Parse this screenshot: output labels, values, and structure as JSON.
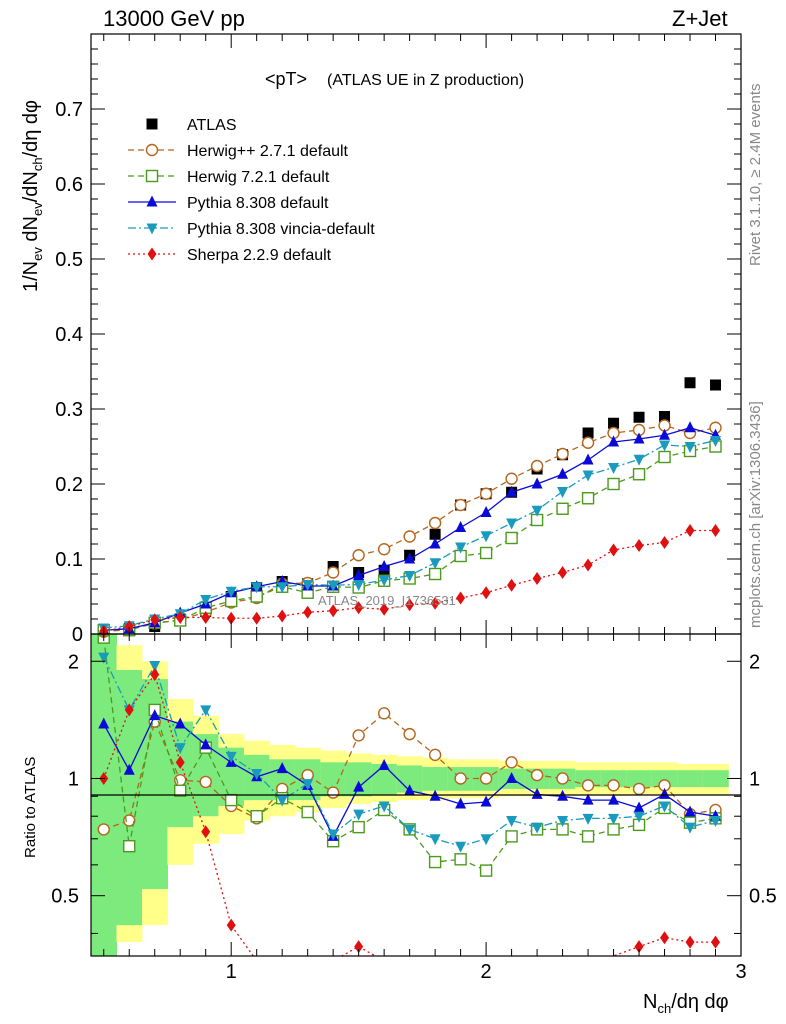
{
  "header": {
    "left": "13000 GeV pp",
    "right": "Z+Jet"
  },
  "side_labels": {
    "rivet": "Rivet 3.1.10, ≥ 2.4M events",
    "mcplots": "mcplots.cern.ch [arXiv:1306.3436]"
  },
  "chart_data": {
    "type": "scatter",
    "title": "<pT>",
    "subtitle": "(ATLAS UE in Z production)",
    "watermark": "ATLAS_2019_I1736531",
    "xlabel_main": "N",
    "xlabel_sub": "ch",
    "xlabel_rest": "/dη dφ",
    "ylabel_main": "1/N",
    "ylabel_ev": "ev",
    "ylabel_mid": " dN",
    "ylabel_ev2": "ev",
    "ylabel_mid2": "/dN",
    "ylabel_ch": "ch",
    "ylabel_rest": "/dη dφ",
    "ratio_ylabel": "Ratio to ATLAS",
    "xlim": [
      0.45,
      3.0
    ],
    "ylim": [
      0.0,
      0.8
    ],
    "ratio_ylim": [
      0.35,
      2.35
    ],
    "ratio_log": true,
    "x_ticks": [
      1,
      2,
      3
    ],
    "x_tick_labels": [
      "1",
      "2",
      "3"
    ],
    "y_ticks": [
      0,
      0.1,
      0.2,
      0.3,
      0.4,
      0.5,
      0.6,
      0.7
    ],
    "y_tick_labels": [
      "0",
      "0.1",
      "0.2",
      "0.3",
      "0.4",
      "0.5",
      "0.6",
      "0.7"
    ],
    "ratio_ticks": [
      0.5,
      1,
      2
    ],
    "ratio_tick_labels": [
      "0.5",
      "1",
      "2"
    ],
    "legend_position": "top-left",
    "x": [
      0.5,
      0.6,
      0.7,
      0.8,
      0.9,
      1.0,
      1.1,
      1.2,
      1.3,
      1.4,
      1.5,
      1.6,
      1.7,
      1.8,
      1.9,
      2.0,
      2.1,
      2.2,
      2.3,
      2.4,
      2.5,
      2.6,
      2.7,
      2.8,
      2.9
    ],
    "series": [
      {
        "name": "ATLAS",
        "color": "#000000",
        "marker": "square-filled",
        "line": "none",
        "values": [
          0.004,
          0.007,
          0.01,
          0.02,
          0.03,
          0.05,
          0.062,
          0.07,
          0.067,
          0.09,
          0.082,
          0.085,
          0.105,
          0.133,
          0.172,
          0.187,
          0.189,
          0.22,
          0.239,
          0.268,
          0.281,
          0.289,
          0.29,
          0.335,
          0.332
        ]
      },
      {
        "name": "Herwig++ 2.7.1 default",
        "color": "#b5651d",
        "marker": "circle-open",
        "line": "dashed",
        "values": [
          0.003,
          0.006,
          0.014,
          0.019,
          0.029,
          0.042,
          0.048,
          0.067,
          0.068,
          0.082,
          0.105,
          0.113,
          0.13,
          0.148,
          0.172,
          0.187,
          0.207,
          0.224,
          0.24,
          0.255,
          0.268,
          0.272,
          0.278,
          0.268,
          0.275
        ]
      },
      {
        "name": "Herwig 7.2.1 default",
        "color": "#4c9a1c",
        "marker": "square-open",
        "line": "dashed",
        "values": [
          0.005,
          0.005,
          0.015,
          0.018,
          0.035,
          0.044,
          0.05,
          0.063,
          0.055,
          0.063,
          0.062,
          0.071,
          0.074,
          0.08,
          0.104,
          0.108,
          0.128,
          0.152,
          0.167,
          0.181,
          0.2,
          0.213,
          0.236,
          0.244,
          0.25
        ]
      },
      {
        "name": "Pythia 8.308 default",
        "color": "#0a0ad8",
        "marker": "triangle-up-filled",
        "line": "solid",
        "values": [
          0.005,
          0.007,
          0.015,
          0.028,
          0.04,
          0.055,
          0.063,
          0.07,
          0.064,
          0.064,
          0.078,
          0.09,
          0.1,
          0.12,
          0.142,
          0.162,
          0.189,
          0.2,
          0.213,
          0.232,
          0.256,
          0.26,
          0.265,
          0.275,
          0.265
        ]
      },
      {
        "name": "Pythia 8.308 vincia-default",
        "color": "#1a9bbd",
        "marker": "triangle-down-filled",
        "line": "dashdot",
        "values": [
          0.008,
          0.011,
          0.02,
          0.027,
          0.046,
          0.057,
          0.063,
          0.063,
          0.066,
          0.065,
          0.066,
          0.072,
          0.078,
          0.095,
          0.116,
          0.131,
          0.148,
          0.165,
          0.19,
          0.212,
          0.222,
          0.233,
          0.252,
          0.25,
          0.258
        ]
      },
      {
        "name": "Sherpa 2.2.9 default",
        "color": "#e01010",
        "marker": "diamond-filled",
        "line": "dotted",
        "values": [
          0.004,
          0.01,
          0.019,
          0.022,
          0.022,
          0.021,
          0.021,
          0.024,
          0.029,
          0.031,
          0.035,
          0.033,
          0.039,
          0.041,
          0.048,
          0.055,
          0.065,
          0.074,
          0.082,
          0.092,
          0.112,
          0.118,
          0.122,
          0.138,
          0.138
        ]
      }
    ],
    "ratio_series": [
      {
        "name": "Herwig++ 2.7.1 default",
        "values": [
          0.74,
          0.78,
          1.4,
          0.99,
          0.98,
          0.85,
          0.79,
          0.94,
          1.02,
          0.92,
          1.29,
          1.47,
          1.3,
          1.15,
          1.0,
          1.0,
          1.1,
          1.02,
          1.0,
          0.96,
          0.96,
          0.94,
          0.96,
          0.81,
          0.83
        ]
      },
      {
        "name": "Herwig 7.2.1 default",
        "values": [
          2.3,
          0.67,
          1.5,
          0.93,
          1.2,
          0.88,
          0.8,
          0.89,
          0.82,
          0.69,
          0.75,
          0.83,
          0.74,
          0.61,
          0.62,
          0.58,
          0.71,
          0.74,
          0.74,
          0.71,
          0.74,
          0.76,
          0.84,
          0.77,
          0.79
        ]
      },
      {
        "name": "Pythia 8.308 default",
        "values": [
          1.38,
          1.05,
          1.45,
          1.38,
          1.22,
          1.1,
          1.01,
          1.06,
          0.96,
          0.71,
          0.95,
          1.08,
          0.93,
          0.9,
          0.86,
          0.87,
          1.0,
          0.91,
          0.9,
          0.88,
          0.88,
          0.84,
          0.91,
          0.82,
          0.8
        ]
      },
      {
        "name": "Pythia 8.308 vincia-default",
        "values": [
          2.05,
          1.5,
          1.95,
          1.2,
          1.5,
          1.14,
          1.03,
          0.88,
          0.97,
          0.72,
          0.81,
          0.85,
          0.74,
          0.7,
          0.67,
          0.7,
          0.78,
          0.75,
          0.78,
          0.79,
          0.79,
          0.8,
          0.85,
          0.75,
          0.78
        ]
      },
      {
        "name": "Sherpa 2.2.9 default",
        "values": [
          1.0,
          1.5,
          1.85,
          1.1,
          0.73,
          0.42,
          0.34,
          0.34,
          0.35,
          0.34,
          0.37,
          0.34,
          0.33,
          0.31,
          0.28,
          0.29,
          0.34,
          0.34,
          0.34,
          0.34,
          0.35,
          0.37,
          0.39,
          0.38,
          0.38
        ]
      }
    ],
    "band_inner_color": "#7dea7d",
    "band_outer_color": "#ffff8a",
    "band_x_edges": [
      0.45,
      0.55,
      0.65,
      0.75,
      0.85,
      0.95,
      1.05,
      1.15,
      1.25,
      1.35,
      1.45,
      1.55,
      1.65,
      1.75,
      1.85,
      1.95,
      2.05,
      2.15,
      2.25,
      2.35,
      2.45,
      2.55,
      2.65,
      2.75,
      2.85,
      2.95
    ],
    "band_inner_lo": [
      0.35,
      0.42,
      0.52,
      0.75,
      0.8,
      0.85,
      0.88,
      0.88,
      0.88,
      0.9,
      0.9,
      0.91,
      0.92,
      0.93,
      0.93,
      0.93,
      0.94,
      0.94,
      0.94,
      0.95,
      0.95,
      0.95,
      0.95,
      0.95,
      0.95
    ],
    "band_inner_hi": [
      2.35,
      1.9,
      1.8,
      1.4,
      1.3,
      1.2,
      1.15,
      1.12,
      1.12,
      1.1,
      1.1,
      1.09,
      1.08,
      1.07,
      1.07,
      1.07,
      1.06,
      1.06,
      1.06,
      1.05,
      1.05,
      1.05,
      1.05,
      1.05,
      1.05
    ],
    "band_outer_lo": [
      0.35,
      0.38,
      0.42,
      0.6,
      0.68,
      0.72,
      0.78,
      0.8,
      0.82,
      0.84,
      0.86,
      0.87,
      0.88,
      0.88,
      0.89,
      0.89,
      0.9,
      0.9,
      0.9,
      0.91,
      0.91,
      0.91,
      0.91,
      0.91,
      0.91
    ],
    "band_outer_hi": [
      2.35,
      2.2,
      2.0,
      1.6,
      1.45,
      1.3,
      1.25,
      1.22,
      1.2,
      1.18,
      1.16,
      1.15,
      1.14,
      1.13,
      1.12,
      1.12,
      1.11,
      1.11,
      1.11,
      1.1,
      1.1,
      1.1,
      1.1,
      1.09,
      1.09
    ]
  }
}
